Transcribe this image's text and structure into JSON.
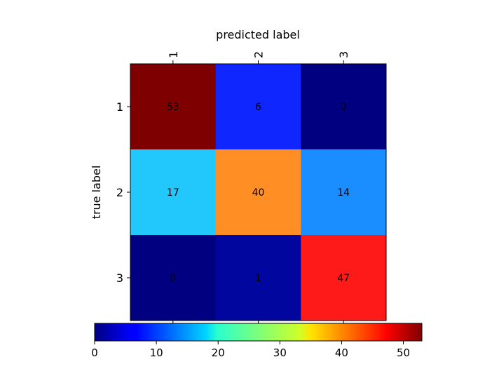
{
  "chart_data": {
    "type": "heatmap",
    "title": "",
    "xlabel": "predicted label",
    "ylabel": "true label",
    "x_categories": [
      "1",
      "2",
      "3"
    ],
    "y_categories": [
      "1",
      "2",
      "3"
    ],
    "values": [
      [
        53,
        6,
        0
      ],
      [
        17,
        40,
        14
      ],
      [
        0,
        1,
        47
      ]
    ],
    "colormap": "jet",
    "color_range": [
      0,
      53
    ],
    "colorbar": {
      "orientation": "horizontal",
      "ticks": [
        0,
        10,
        20,
        30,
        40,
        50
      ],
      "tick_labels": [
        "0",
        "10",
        "20",
        "30",
        "40",
        "50"
      ]
    },
    "cell_colors": [
      [
        "#7f0000",
        "#0f26ff",
        "#000080"
      ],
      [
        "#22c8fb",
        "#ff8e25",
        "#1a8eff"
      ],
      [
        "#000080",
        "#00069e",
        "#ff1a1a"
      ]
    ],
    "x_ticks_position": "top",
    "grid": false
  }
}
